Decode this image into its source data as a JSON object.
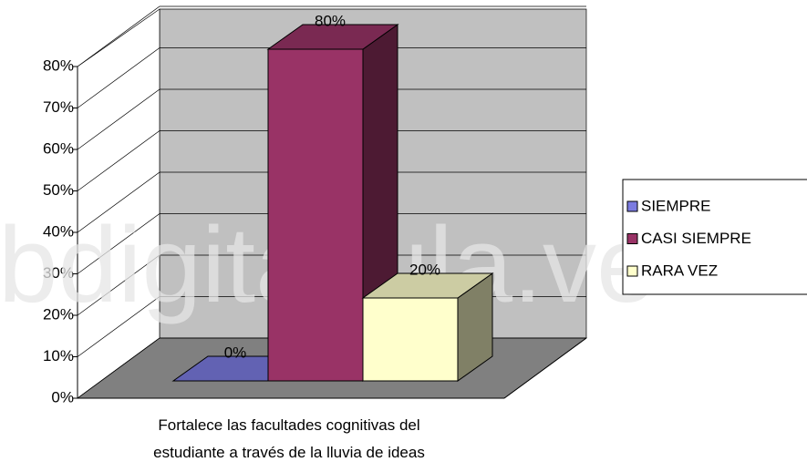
{
  "chart_data": {
    "type": "bar3d",
    "categories": [
      "Fortalece las facultades cognitivas del estudiante a través de la lluvia de ideas"
    ],
    "series": [
      {
        "name": "SIEMPRE",
        "color": "#7b7be0",
        "values": [
          0
        ],
        "value_labels": [
          "0%"
        ]
      },
      {
        "name": "CASI SIEMPRE",
        "color": "#993366",
        "values": [
          80
        ],
        "value_labels": [
          "80%"
        ]
      },
      {
        "name": "RARA VEZ",
        "color": "#ffffcc",
        "values": [
          20
        ],
        "value_labels": [
          "20%"
        ]
      }
    ],
    "ylim": [
      0,
      80
    ],
    "yticks": [
      {
        "value": 0,
        "label": "0%"
      },
      {
        "value": 10,
        "label": "10%"
      },
      {
        "value": 20,
        "label": "20%"
      },
      {
        "value": 30,
        "label": "30%"
      },
      {
        "value": 40,
        "label": "40%"
      },
      {
        "value": 50,
        "label": "50%"
      },
      {
        "value": 60,
        "label": "60%"
      },
      {
        "value": 70,
        "label": "70%"
      },
      {
        "value": 80,
        "label": "80%"
      }
    ],
    "grid": true,
    "legend": "right"
  },
  "watermark": "bdigital.ula.ve"
}
